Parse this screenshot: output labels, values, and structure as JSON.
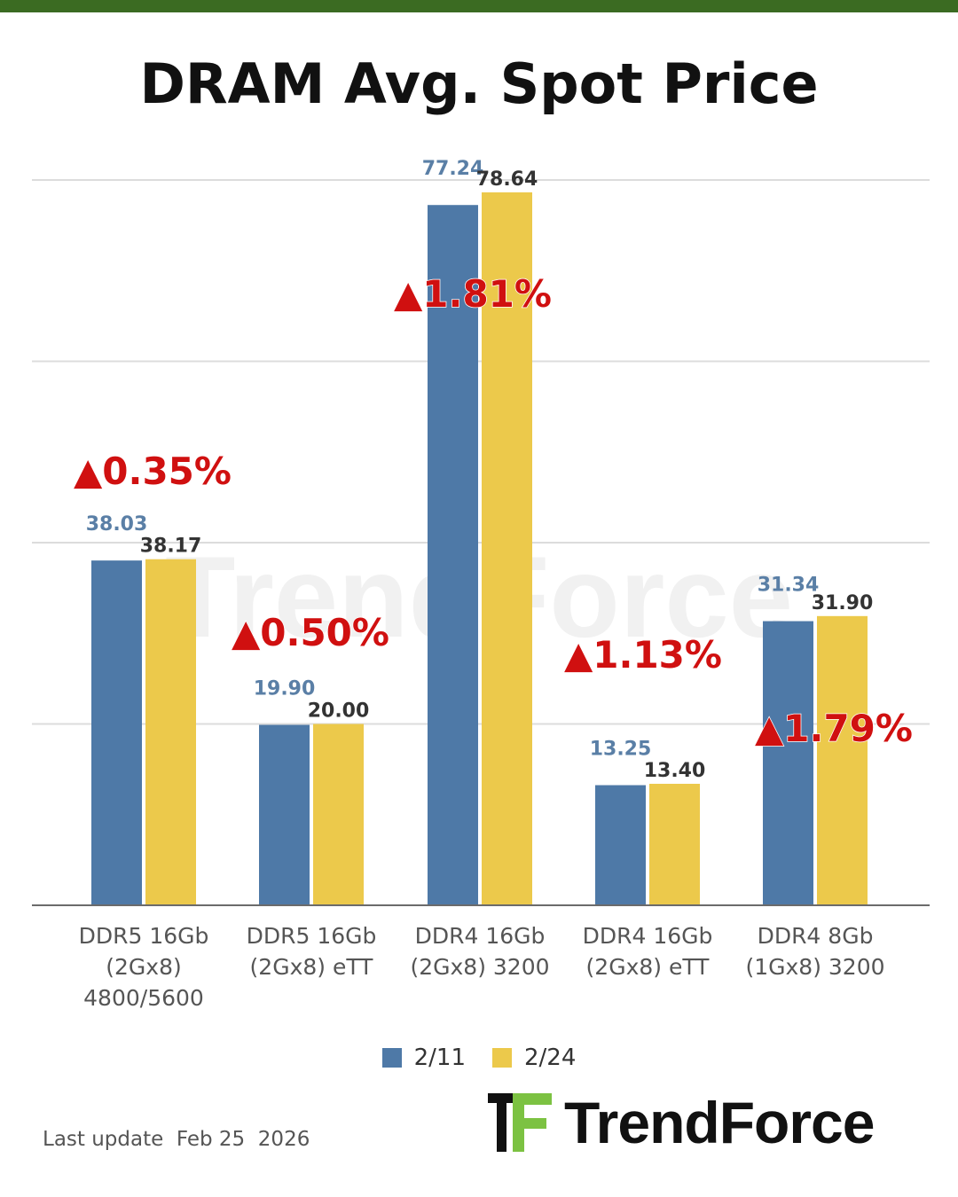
{
  "title": "DRAM Avg. Spot Price",
  "watermark": "TrendForce",
  "colors": {
    "series1": "#4e79a7",
    "series2": "#ecc94b",
    "change": "#d01010",
    "accent_bar": "#3b6b22"
  },
  "chart_data": {
    "type": "bar",
    "categories": [
      [
        "DDR5 16Gb",
        "(2Gx8)",
        "4800/5600"
      ],
      [
        "DDR5 16Gb",
        "(2Gx8) eTT"
      ],
      [
        "DDR4 16Gb",
        "(2Gx8) 3200"
      ],
      [
        "DDR4 16Gb",
        "(2Gx8) eTT"
      ],
      [
        "DDR4 8Gb",
        "(1Gx8) 3200"
      ]
    ],
    "series": [
      {
        "name": "2/11",
        "values": [
          38.03,
          19.9,
          77.24,
          13.25,
          31.34
        ],
        "labels": [
          "38.03",
          "19.90",
          "77.24",
          "13.25",
          "31.34"
        ]
      },
      {
        "name": "2/24",
        "values": [
          38.17,
          20.0,
          78.64,
          13.4,
          31.9
        ],
        "labels": [
          "38.17",
          "20.00",
          "78.64",
          "13.40",
          "31.90"
        ]
      }
    ],
    "annotations": [
      "▲0.35%",
      "▲0.50%",
      "▲1.81%",
      "▲1.13%",
      "▲1.79%"
    ],
    "ylim": [
      0,
      80
    ],
    "gridlines": [
      20,
      40,
      60,
      80
    ],
    "legend_position": "bottom"
  },
  "legend": [
    {
      "label": "2/11",
      "color": "#4e79a7"
    },
    {
      "label": "2/24",
      "color": "#ecc94b"
    }
  ],
  "footer": {
    "last_update": "Last update  Feb 25  2026",
    "brand": "TrendForce"
  }
}
